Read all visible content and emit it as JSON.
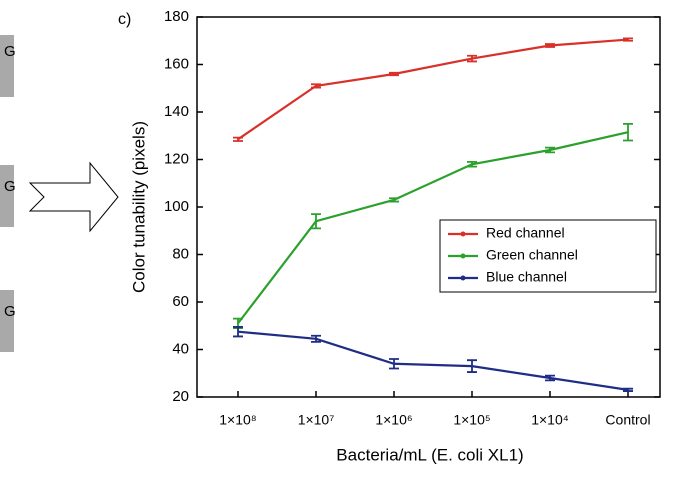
{
  "chart_data": {
    "type": "line",
    "panel_label": "c)",
    "side_labels": [
      "G",
      "G",
      "G"
    ],
    "x_label": "Bacteria/mL (E. coli XL1)",
    "y_label": "Color tunability (pixels)",
    "categories": [
      "1×10⁸",
      "1×10⁷",
      "1×10⁶",
      "1×10⁵",
      "1×10⁴",
      "Control"
    ],
    "ylim": [
      20,
      180
    ],
    "yticks": [
      20,
      40,
      60,
      80,
      100,
      120,
      140,
      160,
      180
    ],
    "series": [
      {
        "name": "Red channel",
        "color": "#d9302a",
        "values": [
          128.5,
          151,
          156,
          162.5,
          168,
          170.5
        ],
        "errors": [
          0.7,
          0.7,
          0.5,
          1.2,
          0.6,
          0.5
        ]
      },
      {
        "name": "Green channel",
        "color": "#2ca02c",
        "values": [
          51,
          94,
          103,
          118,
          124,
          131.5
        ],
        "errors": [
          2,
          3,
          0.7,
          1,
          1,
          3.5
        ]
      },
      {
        "name": "Blue channel",
        "color": "#1f2d86",
        "values": [
          47.5,
          44.5,
          34,
          33,
          28,
          23
        ],
        "errors": [
          2,
          1.3,
          2,
          2.5,
          1,
          0.5
        ]
      }
    ],
    "legend": "center-right"
  }
}
